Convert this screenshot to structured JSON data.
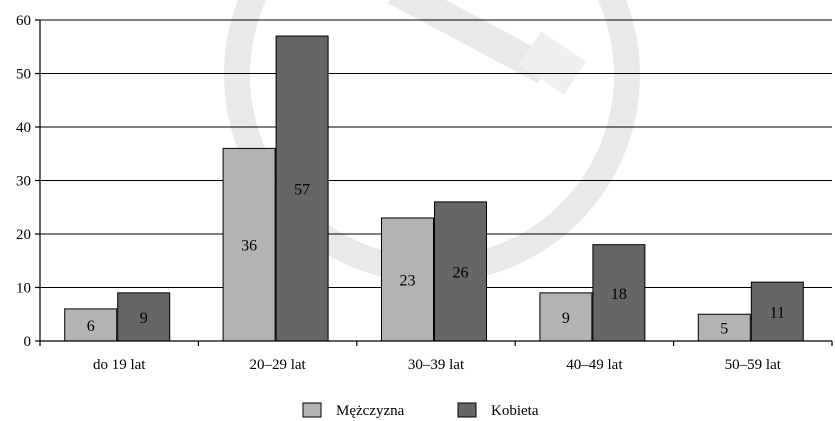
{
  "chart_data": {
    "type": "bar",
    "categories": [
      "do 19 lat",
      "20–29 lat",
      "30–39 lat",
      "40–49 lat",
      "50–59 lat"
    ],
    "series": [
      {
        "name": "Mężczyzna",
        "values": [
          6,
          36,
          23,
          9,
          5
        ],
        "color": "#b3b3b3"
      },
      {
        "name": "Kobieta",
        "values": [
          9,
          57,
          26,
          18,
          11
        ],
        "color": "#666666"
      }
    ],
    "ylim": [
      0,
      60
    ],
    "yticks": [
      "0",
      "10",
      "20",
      "30",
      "40",
      "50",
      "60"
    ],
    "grid": true,
    "legend_position": "bottom-center",
    "data_labels": [
      [
        "6",
        "36",
        "23",
        "9",
        "5"
      ],
      [
        "9",
        "57",
        "26",
        "18",
        "11"
      ]
    ],
    "watermark": "logo"
  }
}
